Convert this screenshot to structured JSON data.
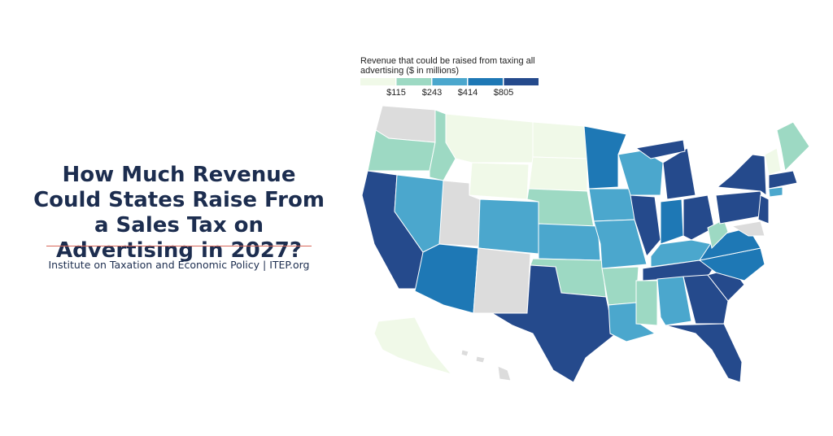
{
  "header": {
    "title": "How Much Revenue Could States Raise From a Sales Tax on Advertising in 2027?",
    "source": "Institute on Taxation and Economic Policy | ITEP.org"
  },
  "legend": {
    "title_lines": [
      "Revenue that could be raised from taxing all",
      "advertising ($ in millions)"
    ],
    "colors": [
      "#f0f9e8",
      "#9dd9c3",
      "#4ba7cd",
      "#1e78b5",
      "#254a8c"
    ],
    "ticks": [
      {
        "value": 115,
        "label": "$115"
      },
      {
        "value": 243,
        "label": "$243"
      },
      {
        "value": 414,
        "label": "$414"
      },
      {
        "value": 805,
        "label": "$805"
      }
    ]
  }
}
